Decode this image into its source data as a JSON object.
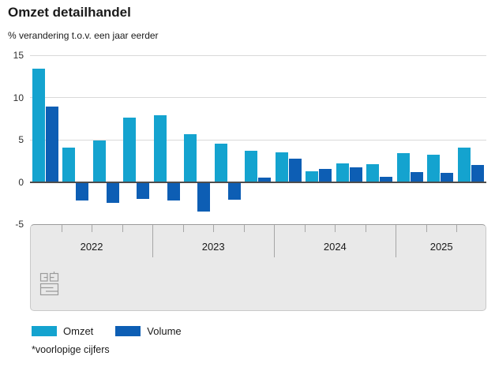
{
  "header": {
    "title": "Omzet detailhandel",
    "subtitle": "% verandering t.o.v. een jaar eerder"
  },
  "chart_data": {
    "type": "bar",
    "title": "Omzet detailhandel",
    "subtitle": "% verandering t.o.v. een jaar eerder",
    "ylim": [
      -5,
      15
    ],
    "yticks": [
      15,
      10,
      5,
      0,
      -5
    ],
    "grid": true,
    "legend_position": "bottom-left",
    "year_labels": [
      "2022",
      "2023",
      "2024",
      "2025"
    ],
    "quarters_per_year": [
      4,
      4,
      4,
      3
    ],
    "categories": [
      "2022-Q1",
      "2022-Q2",
      "2022-Q3",
      "2022-Q4",
      "2023-Q1",
      "2023-Q2",
      "2023-Q3",
      "2023-Q4",
      "2024-Q1",
      "2024-Q2",
      "2024-Q3",
      "2024-Q4",
      "2025-Q1",
      "2025-Q2",
      "2025-Q3"
    ],
    "series": [
      {
        "name": "Omzet",
        "color": "#14a3cf",
        "values": [
          13.4,
          4.1,
          4.9,
          7.6,
          7.9,
          5.7,
          4.5,
          3.7,
          3.5,
          1.3,
          2.2,
          2.1,
          3.4,
          3.2,
          4.1
        ]
      },
      {
        "name": "Volume",
        "color": "#0d5eb4",
        "values": [
          8.9,
          -2.1,
          -2.4,
          -1.9,
          -2.1,
          -3.4,
          -2.0,
          0.5,
          2.8,
          1.5,
          1.7,
          0.6,
          1.2,
          1.1,
          2.0
        ]
      }
    ]
  },
  "branding": {
    "logo": "cbs-logo"
  },
  "footnote": "*voorlopige cijfers"
}
